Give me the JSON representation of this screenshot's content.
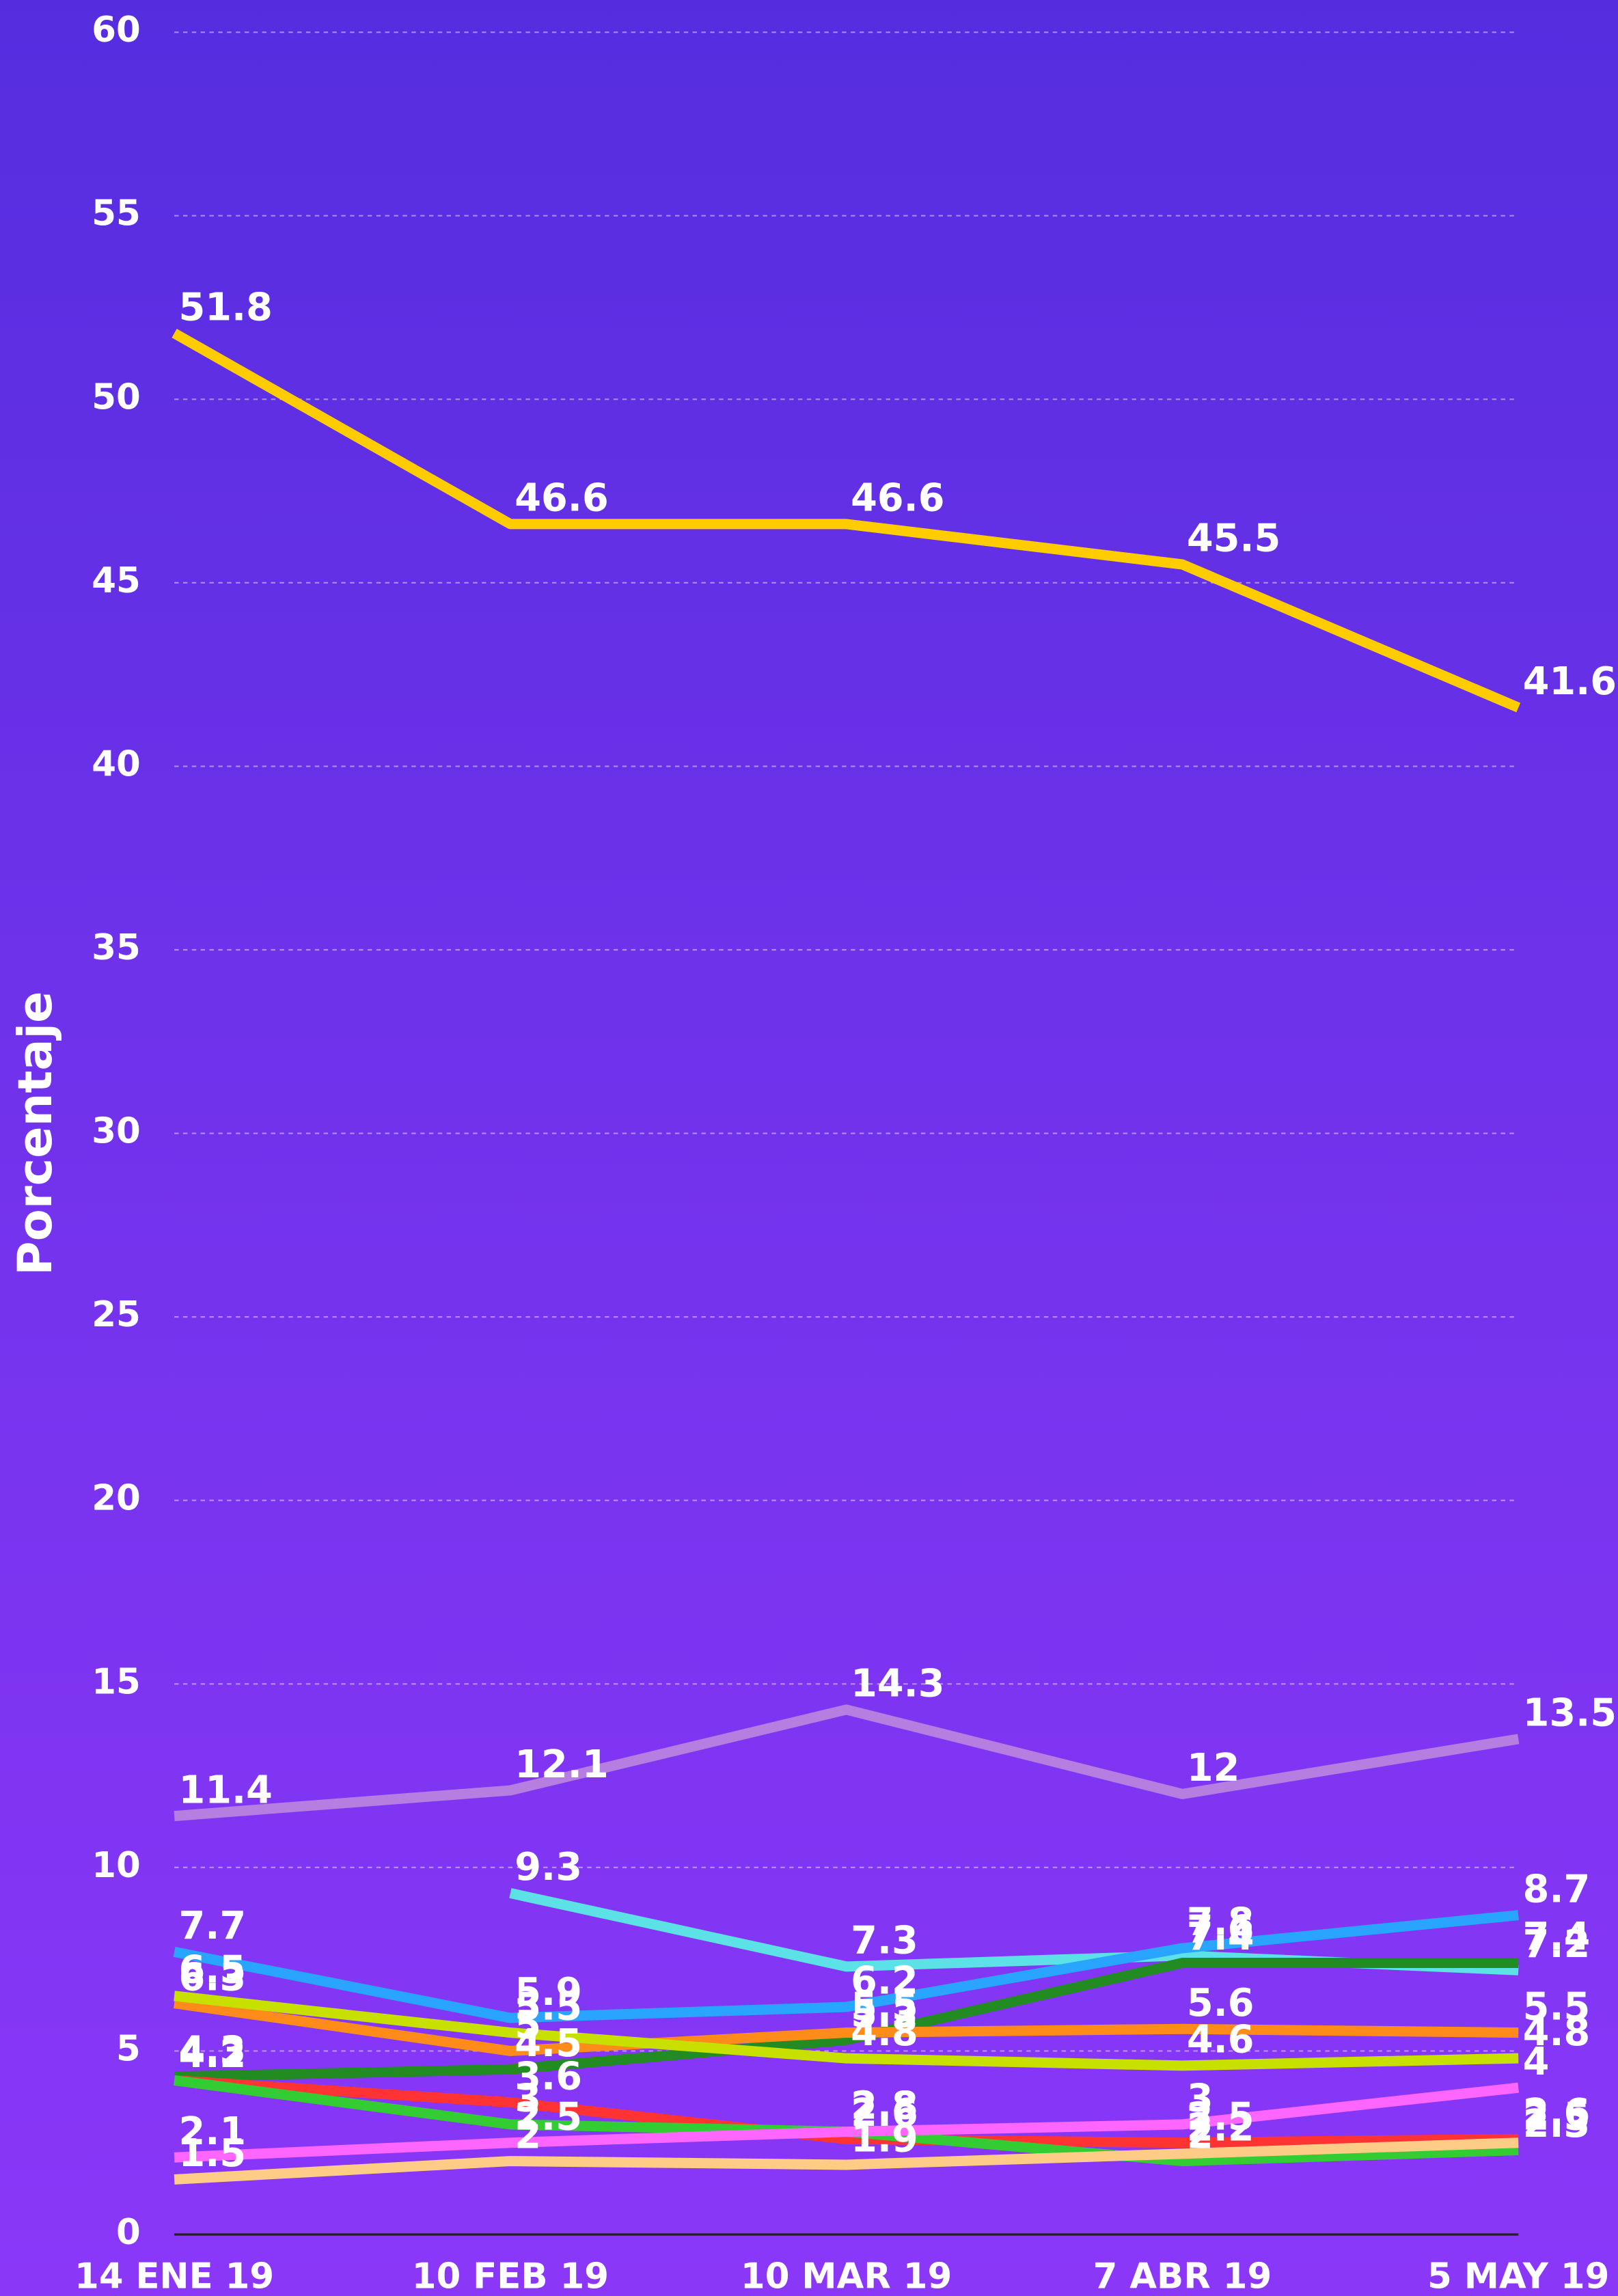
{
  "chart_data": {
    "type": "line",
    "y_label": "Porcentaje",
    "categories": [
      "14 ENE 19",
      "10 FEB 19",
      "10 MAR 19",
      "7 ABR 19",
      "5 MAY 19"
    ],
    "ylim": [
      0,
      60
    ],
    "yticks": [
      0,
      5,
      10,
      15,
      20,
      25,
      30,
      35,
      40,
      45,
      50,
      55,
      60
    ],
    "grid": true,
    "series": [
      {
        "color": "#ffcc00",
        "values": [
          51.8,
          46.6,
          46.6,
          45.5,
          41.6
        ]
      },
      {
        "color": "#b57ee0",
        "values": [
          11.4,
          12.1,
          14.3,
          12,
          13.5
        ]
      },
      {
        "color": "#5ce1e6",
        "values": [
          null,
          9.3,
          7.3,
          7.6,
          7.2
        ]
      },
      {
        "color": "#2aa5ff",
        "values": [
          7.7,
          5.9,
          6.2,
          7.8,
          8.7
        ]
      },
      {
        "color": "#228b22",
        "values": [
          4.3,
          4.5,
          5.3,
          7.4,
          7.4
        ]
      },
      {
        "color": "#ff8c1a",
        "values": [
          6.3,
          5,
          5.5,
          5.6,
          5.5
        ]
      },
      {
        "color": "#c8e000",
        "values": [
          6.5,
          5.5,
          4.8,
          4.6,
          4.8
        ]
      },
      {
        "color": "#ff3333",
        "values": [
          4.2,
          3.6,
          2.6,
          2.5,
          2.6
        ]
      },
      {
        "color": "#33cc33",
        "values": [
          4.2,
          3,
          2.8,
          2,
          2.3
        ]
      },
      {
        "color": "#ff66ff",
        "values": [
          2.1,
          2.5,
          2.8,
          3,
          4
        ]
      },
      {
        "color": "#ffcc88",
        "values": [
          1.5,
          2,
          1.9,
          2.2,
          2.5
        ]
      }
    ]
  }
}
